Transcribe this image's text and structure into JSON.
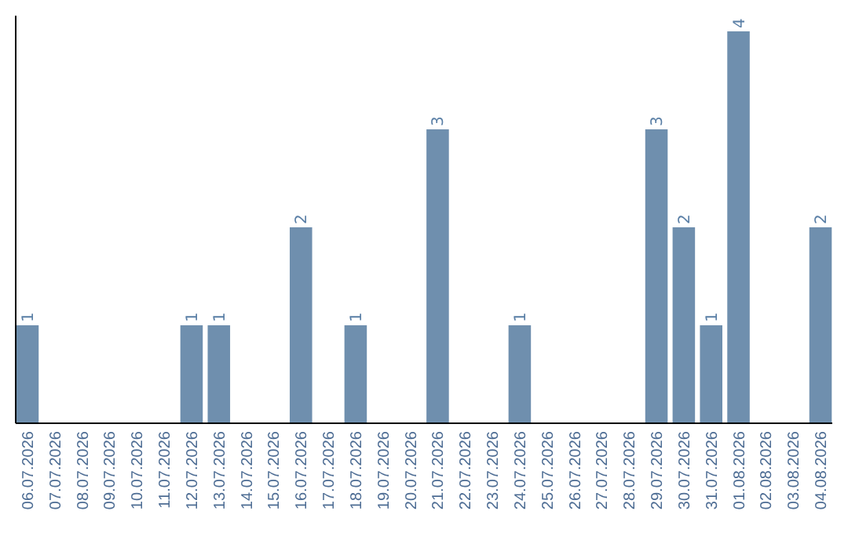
{
  "chart_data": {
    "type": "bar",
    "categories": [
      "06.07.2026",
      "07.07.2026",
      "08.07.2026",
      "09.07.2026",
      "10.07.2026",
      "11.07.2026",
      "12.07.2026",
      "13.07.2026",
      "14.07.2026",
      "15.07.2026",
      "16.07.2026",
      "17.07.2026",
      "18.07.2026",
      "19.07.2026",
      "20.07.2026",
      "21.07.2026",
      "22.07.2026",
      "23.07.2026",
      "24.07.2026",
      "25.07.2026",
      "26.07.2026",
      "27.07.2026",
      "28.07.2026",
      "29.07.2026",
      "30.07.2026",
      "31.07.2026",
      "01.08.2026",
      "02.08.2026",
      "03.08.2026",
      "04.08.2026"
    ],
    "values": [
      1,
      0,
      0,
      0,
      0,
      0,
      1,
      1,
      0,
      0,
      2,
      0,
      1,
      0,
      0,
      3,
      0,
      0,
      1,
      0,
      0,
      0,
      0,
      3,
      2,
      1,
      4,
      0,
      0,
      2
    ],
    "value_labels": [
      "1",
      null,
      null,
      null,
      null,
      null,
      "1",
      "1",
      null,
      null,
      "2",
      null,
      "1",
      null,
      null,
      "3",
      null,
      null,
      "1",
      null,
      null,
      null,
      null,
      "3",
      "2",
      "1",
      "4",
      null,
      null,
      "2"
    ],
    "color": "#6f8fae"
  }
}
